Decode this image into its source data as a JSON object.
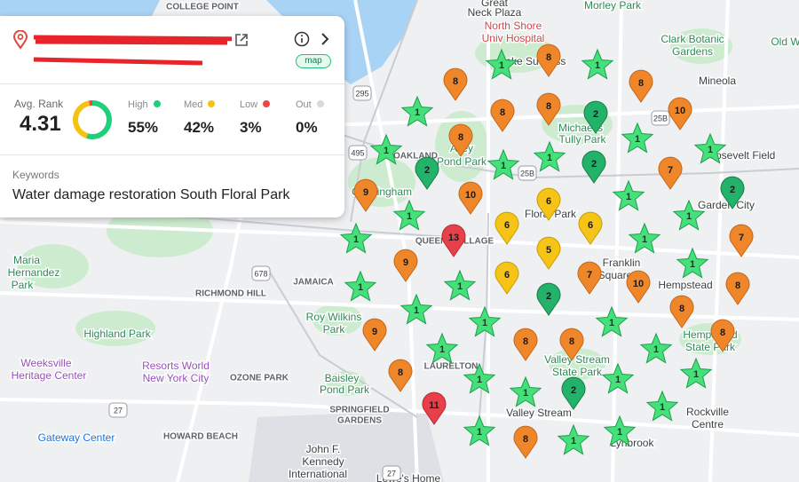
{
  "header": {
    "badge": "map"
  },
  "stats": {
    "avg_label": "Avg. Rank",
    "avg_value": 4.31,
    "segments": [
      {
        "name": "High",
        "value": 55,
        "label": "55%",
        "color": "#1fd07a"
      },
      {
        "name": "Med",
        "value": 42,
        "label": "42%",
        "color": "#f5c211"
      },
      {
        "name": "Low",
        "value": 3,
        "label": "3%",
        "color": "#ef4444"
      },
      {
        "name": "Out",
        "value": 0,
        "label": "0%",
        "color": "#d9d9d9"
      }
    ]
  },
  "keywords": {
    "label": "Keywords",
    "text": "Water damage restoration South Floral Park"
  },
  "pins": [
    1,
    8,
    1,
    8,
    8,
    1,
    8,
    8,
    2,
    10,
    8,
    1,
    1,
    1,
    2,
    1,
    1,
    2,
    7,
    9,
    10,
    1,
    2,
    6,
    1,
    1,
    6,
    6,
    13,
    1,
    1,
    7,
    5,
    9,
    1,
    6,
    7,
    1,
    1,
    10,
    8,
    2,
    1,
    8,
    1,
    1,
    9,
    8,
    8,
    8,
    1,
    1,
    8,
    1,
    1,
    1,
    1,
    2,
    11,
    1,
    1,
    1,
    8,
    1
  ],
  "map_labels": [
    "COLLEGE POINT",
    "Great",
    "Neck Plaza",
    "North Shore",
    "Univ Hospital",
    "Morley Park",
    "Clark Botanic",
    "Gardens",
    "Old W",
    "Mineola",
    "Roosevelt Field",
    "Garden City",
    "Floral Park",
    "Franklin",
    "Square",
    "Hempstead",
    "Maria",
    "Hernandez",
    "Park",
    "RICHMOND HILL",
    "JAMAICA",
    "Roy Wilkins",
    "Park",
    "Highland Park",
    "Weeksville",
    "Heritage Center",
    "Resorts World",
    "New York City",
    "OZONE PARK",
    "LAURELTON",
    "Baisley",
    "Pond Park",
    "SPRINGFIELD",
    "GARDENS",
    "Valley Stream",
    "Valley Stream",
    "State Park",
    "Rockville",
    "Centre",
    "Lynbrook",
    "Gateway Center",
    "HOWARD BEACH",
    "John F.",
    "Kennedy",
    "International",
    "Lowe's Home",
    "QUEENS VILLAGE",
    "Alley",
    "Pond Park",
    "OAKLAND",
    "Cunningham",
    "Michaelis",
    "Tully Park",
    "Lake Success",
    "Hempstead",
    "State Park"
  ],
  "shields": [
    "295",
    "495",
    "678",
    "27",
    "25B",
    "25B",
    "27"
  ]
}
